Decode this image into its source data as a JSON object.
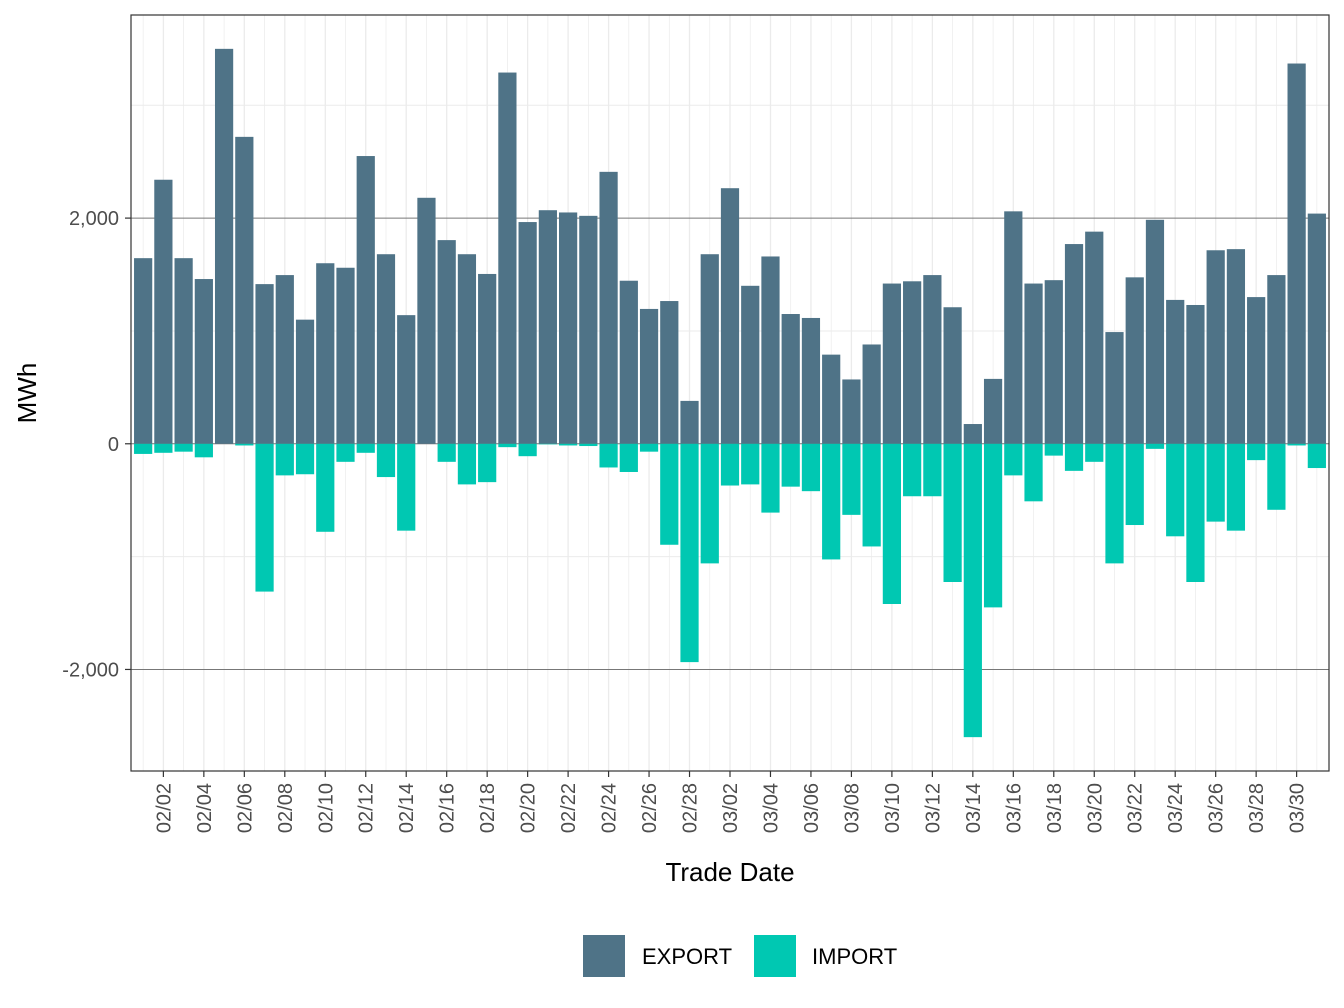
{
  "chart_data": {
    "type": "bar",
    "stacking": "diverging",
    "xlabel": "Trade Date",
    "ylabel": "MWh",
    "ylim": [
      -2900,
      3800
    ],
    "yticks": [
      -2000,
      0,
      2000
    ],
    "ytick_labels": [
      "-2,000",
      "0",
      "2,000"
    ],
    "grid": true,
    "legend_position": "bottom",
    "x_tick_labels": [
      "02/02",
      "02/04",
      "02/06",
      "02/08",
      "02/10",
      "02/12",
      "02/14",
      "02/16",
      "02/18",
      "02/20",
      "02/22",
      "02/24",
      "02/26",
      "02/28",
      "03/02",
      "03/04",
      "03/06",
      "03/08",
      "03/10",
      "03/12",
      "03/14",
      "03/16",
      "03/18",
      "03/20",
      "03/22",
      "03/24",
      "03/26",
      "03/28",
      "03/30"
    ],
    "categories": [
      "02/01",
      "02/02",
      "02/03",
      "02/04",
      "02/05",
      "02/06",
      "02/07",
      "02/08",
      "02/09",
      "02/10",
      "02/11",
      "02/12",
      "02/13",
      "02/14",
      "02/15",
      "02/16",
      "02/17",
      "02/18",
      "02/19",
      "02/20",
      "02/21",
      "02/22",
      "02/23",
      "02/24",
      "02/25",
      "02/26",
      "02/27",
      "02/28",
      "03/01",
      "03/02",
      "03/03",
      "03/04",
      "03/05",
      "03/06",
      "03/07",
      "03/08",
      "03/09",
      "03/10",
      "03/11",
      "03/12",
      "03/13",
      "03/14",
      "03/15",
      "03/16",
      "03/17",
      "03/18",
      "03/19",
      "03/20",
      "03/21",
      "03/22",
      "03/23",
      "03/24",
      "03/25",
      "03/26",
      "03/27",
      "03/28",
      "03/29",
      "03/30",
      "03/31"
    ],
    "series": [
      {
        "name": "EXPORT",
        "color": "#4f7387",
        "values": [
          1645,
          2340,
          1645,
          1460,
          3500,
          2720,
          1415,
          1495,
          1100,
          1600,
          1560,
          2550,
          1680,
          1140,
          2180,
          1805,
          1680,
          1505,
          3290,
          1965,
          2070,
          2050,
          2020,
          2410,
          1445,
          1195,
          1265,
          380,
          1680,
          2265,
          1400,
          1660,
          1150,
          1115,
          790,
          570,
          880,
          1420,
          1440,
          1495,
          1210,
          175,
          575,
          2060,
          1420,
          1450,
          1770,
          1880,
          990,
          1475,
          1985,
          1275,
          1230,
          1715,
          1725,
          1300,
          1495,
          3370,
          2040
        ]
      },
      {
        "name": "IMPORT",
        "color": "#00c8b2",
        "values": [
          -90,
          -80,
          -70,
          -120,
          0,
          -15,
          -1310,
          -280,
          -270,
          -780,
          -160,
          -80,
          -295,
          -770,
          0,
          -160,
          -360,
          -340,
          -30,
          -110,
          -5,
          -15,
          -20,
          -210,
          -250,
          -70,
          -895,
          -1935,
          -1060,
          -370,
          -360,
          -610,
          -380,
          -420,
          -1025,
          -630,
          -910,
          -1420,
          -465,
          -465,
          -1225,
          -2600,
          -1450,
          -280,
          -510,
          -105,
          -240,
          -160,
          -1060,
          -720,
          -45,
          -820,
          -1225,
          -690,
          -770,
          -145,
          -585,
          -15,
          -215
        ]
      }
    ]
  }
}
